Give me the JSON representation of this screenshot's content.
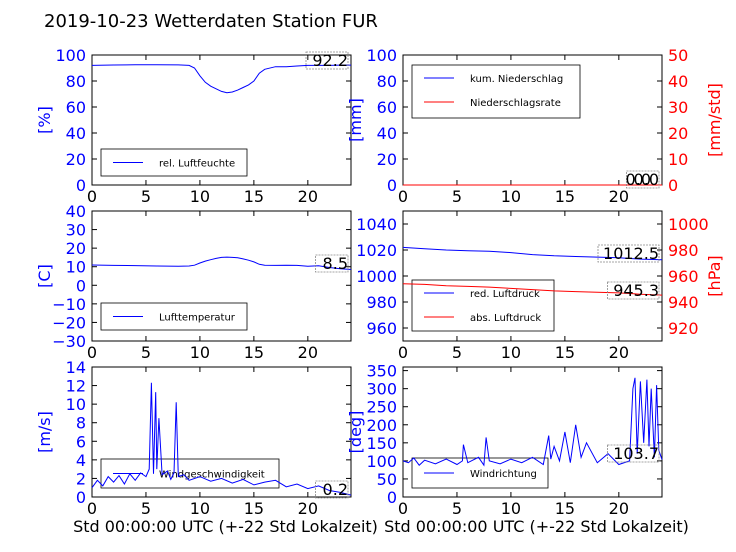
{
  "title": "2019-10-23 Wetterdaten Station FUR\u0001",
  "colors": {
    "blue": "#0000ff",
    "red": "#ff0000",
    "black": "#000000",
    "light": "#8a8aff"
  },
  "chart_data": [
    {
      "type": "line",
      "ylabel": "[%]",
      "xlim": [
        0,
        24
      ],
      "ylim": [
        0,
        100
      ],
      "xticks": [
        "0",
        "5",
        "10",
        "15",
        "20"
      ],
      "yticks": [
        "0",
        "20",
        "40",
        "60",
        "80",
        "100"
      ],
      "legend": [
        "rel. Luftfeuchte"
      ],
      "legend_position": "lower-left",
      "current_value": "92.2",
      "series": [
        {
          "name": "rel. Luftfeuchte",
          "color": "#0000ff",
          "x": [
            0,
            2,
            4,
            6,
            8,
            9,
            9.5,
            10,
            10.5,
            11,
            11.5,
            12,
            12.5,
            13,
            13.5,
            14,
            14.5,
            15,
            15.5,
            16,
            17,
            18,
            19,
            20,
            21,
            22,
            23,
            24
          ],
          "y": [
            92,
            92.3,
            92.5,
            92.5,
            92.4,
            92,
            90,
            84,
            79,
            76,
            74,
            72,
            71,
            71.5,
            73,
            75,
            77,
            80,
            86,
            89,
            91,
            91,
            91.5,
            92,
            92,
            92,
            92.2,
            92.2
          ]
        }
      ]
    },
    {
      "type": "line",
      "ylabel": "[mm]",
      "ylabel_right": "[mm/std]",
      "xlim": [
        0,
        24
      ],
      "ylim": [
        0,
        100
      ],
      "ylim_right": [
        0,
        50
      ],
      "xticks": [
        "0",
        "5",
        "10",
        "15",
        "20"
      ],
      "yticks": [
        "0",
        "20",
        "40",
        "60",
        "80",
        "100"
      ],
      "yticks_right": [
        "0",
        "10",
        "20",
        "30",
        "40",
        "50"
      ],
      "legend": [
        "kum. Niederschlag",
        "Niederschlagsrate"
      ],
      "legend_position": "upper-left",
      "current_value": "0.0",
      "current_value_right": "0.0",
      "series": [
        {
          "name": "kum. Niederschlag",
          "color": "#0000ff",
          "x": [
            0,
            24
          ],
          "y": [
            0,
            0
          ]
        },
        {
          "name": "Niederschlagsrate",
          "color": "#ff0000",
          "x": [
            0,
            24
          ],
          "y": [
            0,
            0
          ]
        }
      ]
    },
    {
      "type": "line",
      "ylabel": "[C]",
      "xlim": [
        0,
        24
      ],
      "ylim": [
        -30,
        40
      ],
      "xticks": [
        "0",
        "5",
        "10",
        "15",
        "20"
      ],
      "yticks": [
        "−30",
        "−20",
        "−10",
        "0",
        "10",
        "20",
        "30",
        "40"
      ],
      "legend": [
        "Lufttemperatur"
      ],
      "legend_position": "lower-left",
      "current_value": "8.5",
      "series": [
        {
          "name": "Lufttemperatur",
          "color": "#0000ff",
          "x": [
            0,
            2,
            4,
            6,
            8,
            9,
            9.5,
            10,
            10.5,
            11,
            11.5,
            12,
            12.5,
            13,
            13.5,
            14,
            14.5,
            15,
            15.5,
            16,
            17,
            18,
            19,
            20,
            21,
            22,
            23,
            24
          ],
          "y": [
            10.9,
            10.7,
            10.6,
            10.4,
            10.3,
            10.4,
            10.8,
            12,
            13,
            13.8,
            14.5,
            15,
            15.2,
            15,
            14.8,
            14.2,
            13.5,
            12.6,
            11.3,
            10.8,
            10.7,
            10.8,
            10.7,
            10.3,
            10.5,
            9.6,
            8.9,
            8.5
          ]
        }
      ]
    },
    {
      "type": "line",
      "ylabel_right": "[hPa]",
      "xlim": [
        0,
        24
      ],
      "ylim": [
        950,
        1050
      ],
      "ylim_right": [
        910,
        1010
      ],
      "xticks": [
        "0",
        "5",
        "10",
        "15",
        "20"
      ],
      "yticks": [
        "960",
        "980",
        "1000",
        "1020",
        "1040"
      ],
      "yticks_right": [
        "920",
        "940",
        "960",
        "980",
        "1000"
      ],
      "legend": [
        "red. Luftdruck",
        "abs. Luftdruck"
      ],
      "legend_position": "lower-left",
      "current_value": "1012.5",
      "current_value_right": "945.3",
      "series": [
        {
          "name": "red. Luftdruck",
          "color": "#0000ff",
          "x": [
            0,
            2,
            4,
            6,
            8,
            10,
            12,
            14,
            16,
            18,
            20,
            22,
            24
          ],
          "y": [
            1022,
            1021,
            1020,
            1019.5,
            1019,
            1018,
            1016.5,
            1015.5,
            1015,
            1014.5,
            1014,
            1013,
            1012.5
          ]
        },
        {
          "name": "abs. Luftdruck",
          "color": "#ff0000",
          "x": [
            0,
            2,
            4,
            6,
            8,
            10,
            12,
            14,
            16,
            18,
            20,
            22,
            24
          ],
          "y": [
            954,
            953.5,
            952.5,
            952,
            951.5,
            950.5,
            949.5,
            948.5,
            948,
            947.5,
            947,
            946,
            945.3
          ]
        }
      ]
    },
    {
      "type": "line",
      "ylabel": "[m/s]",
      "xlabel": "Std 00:00:00 UTC (+-22 Std Lokalzeit)",
      "xlim": [
        0,
        24
      ],
      "ylim": [
        0,
        14
      ],
      "xticks": [
        "0",
        "5",
        "10",
        "15",
        "20"
      ],
      "yticks": [
        "0",
        "2",
        "4",
        "6",
        "8",
        "10",
        "12",
        "14"
      ],
      "legend": [
        "Windgeschwindigkeit"
      ],
      "legend_position": "lower-left",
      "current_value": "0.2",
      "series": [
        {
          "name": "Windgeschwindigkeit",
          "color": "#0000ff",
          "x": [
            0,
            0.5,
            1,
            1.5,
            2,
            2.5,
            3,
            3.5,
            4,
            4.5,
            5,
            5.3,
            5.5,
            5.7,
            5.9,
            6,
            6.2,
            6.5,
            7,
            7.3,
            7.6,
            7.8,
            8,
            8.5,
            9,
            10,
            11,
            12,
            13,
            14,
            15,
            16,
            17,
            18,
            19,
            20,
            21,
            22,
            23,
            24
          ],
          "y": [
            1,
            1.8,
            1.2,
            2.2,
            1.6,
            2.3,
            1.4,
            2.5,
            1.8,
            2.6,
            2.2,
            3,
            12.3,
            2.5,
            11.3,
            3,
            8.5,
            2.4,
            2.8,
            1.9,
            2.6,
            10.2,
            2.2,
            2.4,
            1.8,
            2.2,
            1.7,
            2,
            1.5,
            1.9,
            1.3,
            1.6,
            1.8,
            1.1,
            1.4,
            0.9,
            1.2,
            0.7,
            0.5,
            0.2
          ]
        }
      ]
    },
    {
      "type": "line",
      "ylabel": "[deg]",
      "xlabel": "Std 00:00:00 UTC (+-22 Std Lokalzeit)",
      "xlim": [
        0,
        24
      ],
      "ylim": [
        0,
        360
      ],
      "xticks": [
        "0",
        "5",
        "10",
        "15",
        "20"
      ],
      "yticks": [
        "0",
        "50",
        "100",
        "150",
        "200",
        "250",
        "300",
        "350"
      ],
      "legend": [
        "Windrichtung"
      ],
      "legend_position": "lower-left",
      "current_value": "103.7",
      "series": [
        {
          "name": "Windrichtung",
          "color": "#0000ff",
          "x": [
            0,
            0.5,
            1,
            1.5,
            2,
            3,
            4,
            5,
            5.5,
            5.6,
            6,
            7,
            7.5,
            7.7,
            8,
            9,
            10,
            11,
            12,
            13,
            13.5,
            13.7,
            14,
            14.5,
            15,
            15.5,
            16,
            16.5,
            17,
            18,
            19,
            20,
            21,
            21.3,
            21.5,
            21.7,
            22,
            22.3,
            22.6,
            22.8,
            23,
            23.3,
            23.5,
            23.7,
            24
          ],
          "y": [
            100,
            95,
            108,
            88,
            102,
            92,
            105,
            90,
            100,
            145,
            95,
            110,
            88,
            165,
            100,
            92,
            105,
            95,
            110,
            90,
            170,
            105,
            140,
            100,
            180,
            95,
            200,
            110,
            150,
            95,
            120,
            90,
            100,
            300,
            330,
            120,
            320,
            150,
            325,
            140,
            300,
            110,
            310,
            130,
            103.7
          ]
        }
      ]
    }
  ]
}
